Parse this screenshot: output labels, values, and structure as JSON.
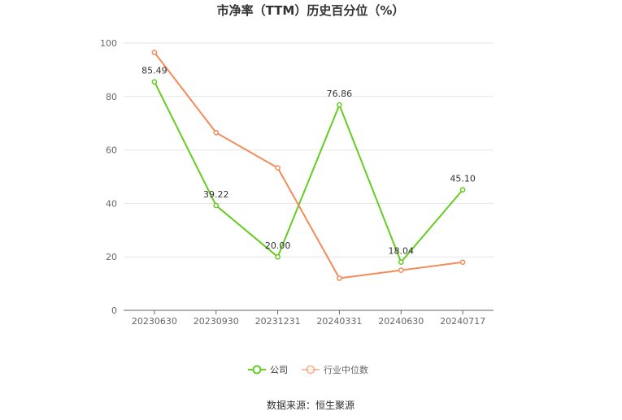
{
  "chart_data": {
    "type": "line",
    "title": "市净率（TTM）历史百分位（%）",
    "categories": [
      "20230630",
      "20230930",
      "20231231",
      "20240331",
      "20240630",
      "20240717"
    ],
    "ylim": [
      0,
      100
    ],
    "yticks": [
      0,
      20,
      40,
      60,
      80,
      100
    ],
    "grid": true,
    "legend_position": "bottom",
    "series": [
      {
        "name": "公司",
        "color": "#66cc22",
        "values": [
          85.49,
          39.22,
          20.0,
          76.86,
          18.04,
          45.1
        ],
        "labels": [
          "85.49",
          "39.22",
          "20.00",
          "76.86",
          "18.04",
          "45.10"
        ]
      },
      {
        "name": "行业中位数",
        "color": "#f28c5a",
        "values": [
          96.5,
          66.5,
          53.3,
          12.0,
          15.0,
          18.0
        ]
      }
    ],
    "source": "数据来源：恒生聚源"
  }
}
